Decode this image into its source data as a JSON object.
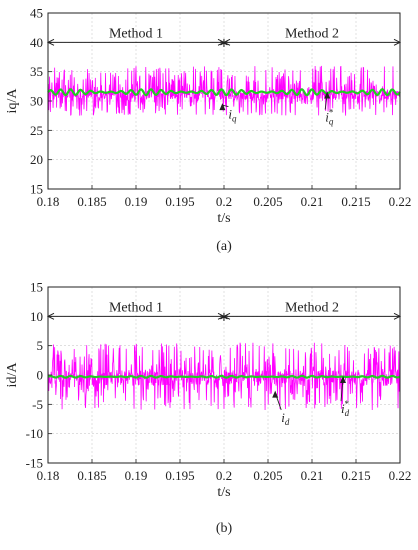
{
  "colors": {
    "measured": "#ff00ff",
    "reference": "#22cc22",
    "axis": "#222222",
    "grid": "#cccccc"
  },
  "chart_data": [
    {
      "type": "line",
      "subplot_label": "(a)",
      "xlabel": "t/s",
      "ylabel": "iq/A",
      "x_ticks": [
        "0.18",
        "0.185",
        "0.19",
        "0.195",
        "0.2",
        "0.205",
        "0.21",
        "0.215",
        "0.22"
      ],
      "y_ticks": [
        "15",
        "20",
        "25",
        "30",
        "35",
        "40",
        "45"
      ],
      "xlim": [
        0.18,
        0.22
      ],
      "ylim": [
        15,
        45
      ],
      "grid": true,
      "regions": [
        {
          "label": "Method 1",
          "x_start": 0.18,
          "x_end": 0.2,
          "y": 40
        },
        {
          "label": "Method 2",
          "x_start": 0.2,
          "x_end": 0.22,
          "y": 40
        }
      ],
      "series": [
        {
          "name": "iq",
          "mean": 31,
          "noise_amplitude": 2.5,
          "noise_range": [
            27.5,
            36
          ]
        },
        {
          "name": "iq*",
          "mean": 31.5,
          "ripple_amplitude": 0.5
        }
      ],
      "annotations": [
        {
          "text": "iq",
          "x": 0.2005,
          "y": 27
        },
        {
          "text": "iq*",
          "x": 0.2115,
          "y": 26.5
        }
      ]
    },
    {
      "type": "line",
      "subplot_label": "(b)",
      "xlabel": "t/s",
      "ylabel": "id/A",
      "x_ticks": [
        "0.18",
        "0.185",
        "0.19",
        "0.195",
        "0.2",
        "0.205",
        "0.21",
        "0.215",
        "0.22"
      ],
      "y_ticks": [
        "-15",
        "-10",
        "-5",
        "0",
        "5",
        "10",
        "15"
      ],
      "xlim": [
        0.18,
        0.22
      ],
      "ylim": [
        -15,
        15
      ],
      "grid": true,
      "regions": [
        {
          "label": "Method 1",
          "x_start": 0.18,
          "x_end": 0.2,
          "y": 10
        },
        {
          "label": "Method 2",
          "x_start": 0.2,
          "x_end": 0.22,
          "y": 10
        }
      ],
      "series": [
        {
          "name": "id",
          "mean": -0.5,
          "noise_amplitude": 4.5,
          "noise_range": [
            -6,
            5.5
          ]
        },
        {
          "name": "id*",
          "mean": -0.3,
          "ripple_amplitude": 0.15
        }
      ],
      "annotations": [
        {
          "text": "id",
          "x": 0.2065,
          "y": -8
        },
        {
          "text": "id*",
          "x": 0.2133,
          "y": -6.5
        }
      ]
    }
  ]
}
